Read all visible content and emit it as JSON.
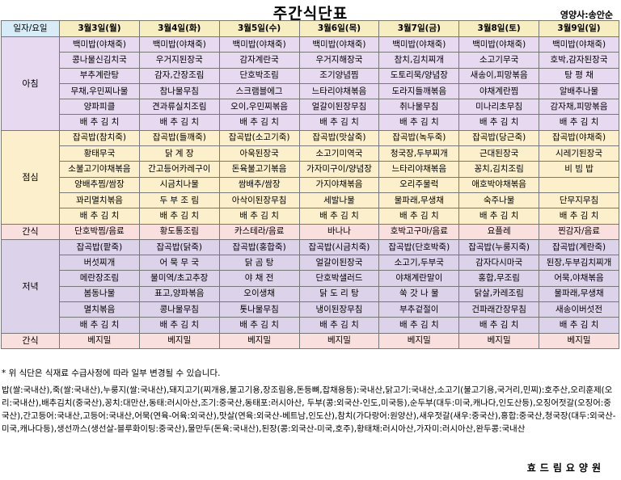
{
  "title": "주간식단표",
  "dietitian": "영양사:송안순",
  "header": {
    "corner": "일자/요일",
    "days": [
      "3월3일(월)",
      "3월4일(화)",
      "3월5일(수)",
      "3월6일(목)",
      "3월7일(금)",
      "3월8일(토)",
      "3월9일(일)"
    ]
  },
  "sections": {
    "breakfast": {
      "label": "아침",
      "rows": [
        [
          "백미밥(야채죽)",
          "백미밥(야채죽)",
          "백미밥(야채죽)",
          "백미밥(야채죽)",
          "백미밥(야채죽)",
          "백미밥(야채죽)",
          "백미밥(야채죽)"
        ],
        [
          "콩나물신김치국",
          "우거지된장국",
          "감자계란국",
          "우거지해장국",
          "참치,김치찌개",
          "소고기무국",
          "호박,감자된장국"
        ],
        [
          "부추계란탕",
          "감자,간장조림",
          "단호박조림",
          "조기양념찜",
          "도토리묵/양념장",
          "새송이,피망볶음",
          "탕 평 채"
        ],
        [
          "무채,우민찌나물",
          "참나물무침",
          "스크램블에그",
          "느타리야채볶음",
          "도라지들깨볶음",
          "야채계란찜",
          "알배추나물"
        ],
        [
          "양파피클",
          "견과류실치조림",
          "오이,우민찌볶음",
          "얼갈이된장무침",
          "취나물무침",
          "미나리초무침",
          "감자채,피망볶음"
        ],
        [
          "배 추 김 치",
          "배 추 김 치",
          "배 추 김 치",
          "배 추 김 치",
          "배 추 김 치",
          "배 추 김 치",
          "배 추 김 치"
        ]
      ]
    },
    "lunch": {
      "label": "점심",
      "rows": [
        [
          "잡곡밥(참치죽)",
          "잡곡밥(들깨죽)",
          "잡곡밥(소고기죽)",
          "잡곡밥(맛살죽)",
          "잡곡밥(녹두죽)",
          "잡곡밥(당근죽)",
          "잡곡밥(야채죽)"
        ],
        [
          "황태무국",
          "닭 계 장",
          "아욱된장국",
          "소고기미역국",
          "청국장,두부찌개",
          "근대된장국",
          "시레기된장국"
        ],
        [
          "소불고기야채볶음",
          "간고등어카레구이",
          "돈육불고기볶음",
          "가자미구이/양념장",
          "느타리야채볶음",
          "꽁치,김치조림",
          "비 빔 밥"
        ],
        [
          "양배추찜/쌈장",
          "시금치나물",
          "쌈배추/쌈장",
          "가지야채볶음",
          "오리주물럭",
          "애호박야채볶음",
          ""
        ],
        [
          "꽈리멸치볶음",
          "두 부 조 림",
          "아삭이된장무침",
          "세발나물",
          "물파래,무생채",
          "숙주나물",
          "단무지무침"
        ],
        [
          "배 추 김 치",
          "배 추 김 치",
          "배 추 김 치",
          "배 추 김 치",
          "배 추 김 치",
          "배 추 김 치",
          "배 추 김 치"
        ]
      ]
    },
    "snack": {
      "label": "간식",
      "row": [
        "단호박찜/음료",
        "황도통조림",
        "카스테라/음료",
        "바나나",
        "호박고구마/음료",
        "요플레",
        "찐감자/음료"
      ]
    },
    "dinner": {
      "label": "저녁",
      "rows": [
        [
          "잡곡밥(팥죽)",
          "잡곡밥(닭죽)",
          "잡곡밥(홍합죽)",
          "잡곡밥(시금치죽)",
          "잡곡밥(단호박죽)",
          "잡곡밥(누룽지죽)",
          "잡곡밥(계란죽)"
        ],
        [
          "버섯찌개",
          "어 묵 무 국",
          "닭 곰 탕",
          "얼갈이된장국",
          "소고기,두부국",
          "감자다시마국",
          "된장,두부김치찌개"
        ],
        [
          "메란장조림",
          "물미역/초고추장",
          "야 채 전",
          "단호박샐러드",
          "야채계란말이",
          "홍합,무조림",
          "어묵,야채볶음"
        ],
        [
          "봄동나물",
          "표고,양파볶음",
          "오이생채",
          "닭 도 리 탕",
          "쑥 갓 나 물",
          "닭살,카레조림",
          "물파래,무생채"
        ],
        [
          "멸치볶음",
          "콩나물무침",
          "톳나물무침",
          "냉이된장무침",
          "부추겉절이",
          "건파래간장무침",
          "새송이버섯전"
        ],
        [
          "배 추 김 치",
          "배 추 김 치",
          "배 추 김 치",
          "배 추 김 치",
          "배 추 김 치",
          "배 추 김 치",
          "배 추 김 치"
        ]
      ]
    },
    "late_snack": {
      "label": "간식",
      "row": [
        "베지밀",
        "베지밀",
        "베지밀",
        "베지밀",
        "베지밀",
        "베지밀",
        "베지밀"
      ]
    }
  },
  "note": "* 위 식단은 식재료 수급사정에 따라 일부 변경될 수 있습니다.",
  "origin": "밥(쌀:국내산),죽(쌀:국내산),누룽지(쌀:국내산),돼지고기(찌개용,불고기용,장조림용,돈등뼈,잡채용등):국내산,닭고기:국내산,소고기(불고기용,국거리,민찌):호주산,오리훈제(오리:국내산),배추김치(중국산),꽁치:대만산,동태:러시아산,조기:중국산,동태포:러시아산, 두부(콩:외국산-인도,미국등),순두부(대두:미국,캐나다,인도산등),오징어젓갈(오징어:중국산),간고등어:국내산,고등어:국내산,어묵(연육-어육:외국산),맛살(연육:외국산-베트남,인도산),참치(가다랑어:원양산),새우젓갈(새우:중국산),홍합:중국산,청국장(대두:외국산-미국,캐나다등),생선까스(생선살-블루화이팅:중국산),물만두(돈육:국내산),된장(콩:외국산-미국,호주),황태채:러시아산,가자미:러시아산,완두콩:국내산",
  "footer": "효드림요양원"
}
